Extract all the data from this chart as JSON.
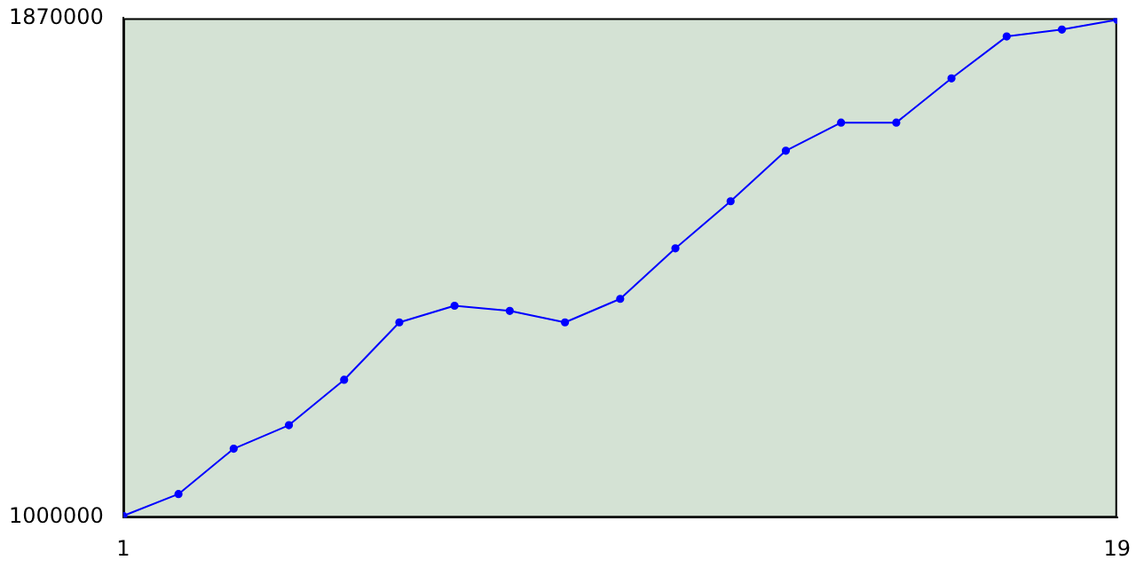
{
  "chart_data": {
    "type": "line",
    "x": [
      1,
      2,
      3,
      4,
      5,
      6,
      7,
      8,
      9,
      10,
      11,
      12,
      13,
      14,
      15,
      16,
      17,
      18,
      19
    ],
    "series": [
      {
        "color": "#0000ff",
        "values": [
          1003000,
          1041000,
          1120000,
          1161000,
          1240000,
          1340000,
          1369000,
          1360000,
          1340000,
          1381000,
          1469000,
          1551000,
          1639000,
          1688000,
          1688000,
          1765000,
          1838000,
          1850000,
          1867000
        ]
      }
    ],
    "xlim": [
      1,
      19
    ],
    "xticks": [
      1,
      19
    ],
    "ylim": [
      1000000,
      1870000
    ],
    "yticks": [
      1000000,
      1870000
    ],
    "grid": false,
    "legend": false,
    "marker": "circle",
    "line_style": "solid"
  }
}
